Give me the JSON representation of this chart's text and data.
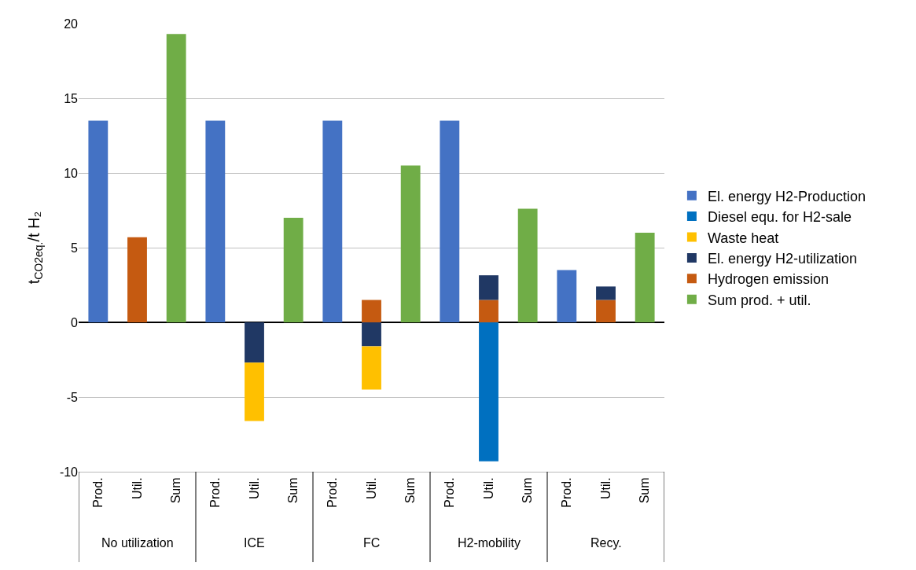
{
  "chart_data": {
    "type": "bar",
    "stacked": true,
    "ylabel": "t$_{CO2eq.}$/t H₂",
    "categories": [
      "Prod.",
      "Util.",
      "Sum",
      "Prod.",
      "Util.",
      "Sum",
      "Prod.",
      "Util.",
      "Sum",
      "Prod.",
      "Util.",
      "Sum",
      "Prod.",
      "Util.",
      "Sum"
    ],
    "annotations": [
      "No utilization",
      "ICE",
      "FC",
      "H2-mobility",
      "Recy."
    ],
    "series": [
      {
        "name": "Sum prod. + util.",
        "color": "#70ad47",
        "values": [
          null,
          null,
          19.3,
          null,
          null,
          7.0,
          null,
          null,
          10.5,
          null,
          null,
          7.6,
          null,
          null,
          6.0
        ]
      },
      {
        "name": "Hydrogen emission",
        "color": "#c55a11",
        "values": [
          null,
          5.7,
          null,
          null,
          null,
          null,
          null,
          1.5,
          null,
          null,
          1.5,
          null,
          null,
          1.5,
          null
        ]
      },
      {
        "name": "El. energy H2-utilization",
        "color": "#203864",
        "values": [
          null,
          null,
          null,
          null,
          -2.7,
          null,
          null,
          -1.6,
          null,
          null,
          1.65,
          null,
          null,
          0.9,
          null
        ]
      },
      {
        "name": "Waste heat",
        "color": "#ffc000",
        "values": [
          null,
          null,
          null,
          null,
          -3.9,
          null,
          null,
          -2.9,
          null,
          null,
          null,
          null,
          null,
          null,
          null
        ]
      },
      {
        "name": "Diesel equ. for H2-sale",
        "color": "#0070c0",
        "values": [
          null,
          null,
          null,
          null,
          null,
          null,
          null,
          null,
          null,
          null,
          -9.3,
          null,
          null,
          null,
          null
        ]
      },
      {
        "name": "El. energy H2-Production",
        "color": "#4472c4",
        "values": [
          13.5,
          null,
          null,
          13.5,
          null,
          null,
          13.5,
          null,
          null,
          13.5,
          null,
          null,
          3.5,
          null,
          null
        ]
      }
    ],
    "ylim": [
      -10,
      20
    ],
    "yticks": [
      -10,
      -5,
      0,
      5,
      10,
      15,
      20
    ],
    "grid": "y",
    "legend": "right"
  }
}
